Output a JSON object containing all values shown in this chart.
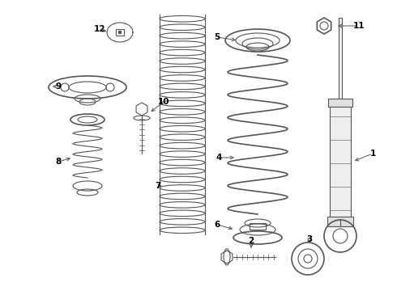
{
  "background_color": "#ffffff",
  "line_color": "#555555",
  "label_color": "#000000",
  "fig_w": 4.9,
  "fig_h": 3.6,
  "dpi": 100
}
